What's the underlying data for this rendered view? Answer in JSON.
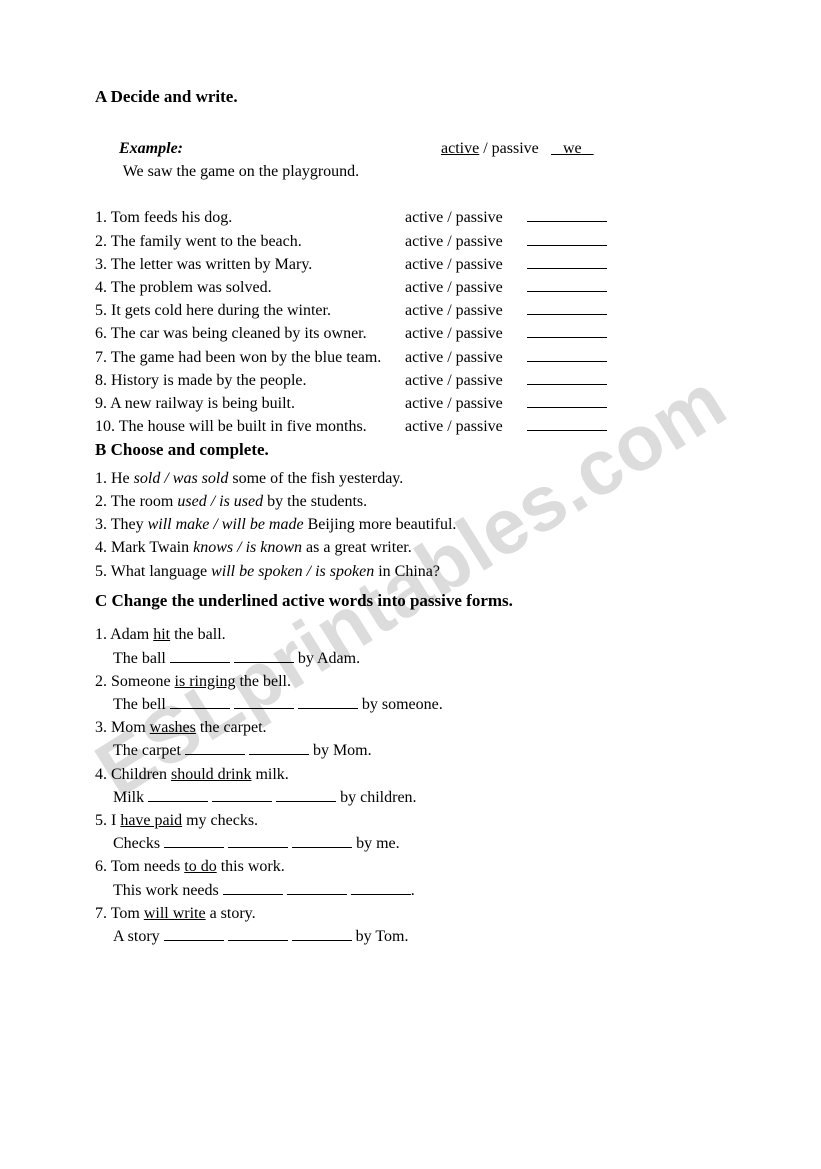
{
  "watermark_text": "ESLprintables.com",
  "sectionA": {
    "heading": "A Decide and write.",
    "example": {
      "label": "Example:",
      "sentence": "We saw the game on the playground.",
      "choice_active": "active",
      "choice_sep": " / ",
      "choice_passive": "passive",
      "answer": "we"
    },
    "choice_text": "active / passive",
    "items": [
      {
        "num": "1.",
        "text": "Tom feeds his dog."
      },
      {
        "num": "2.",
        "text": "The family went to the beach."
      },
      {
        "num": "3.",
        "text": "The letter was written by Mary."
      },
      {
        "num": "4.",
        "text": "The problem was solved."
      },
      {
        "num": "5.",
        "text": "It gets cold here during the winter."
      },
      {
        "num": "6.",
        "text": "The car was being cleaned by its owner."
      },
      {
        "num": "7.",
        "text": "The game had been won by the blue team."
      },
      {
        "num": "8.",
        "text": "History is made by the people."
      },
      {
        "num": "9.",
        "text": "A new railway is being built."
      },
      {
        "num": "10.",
        "text": "The house will be built in five months."
      }
    ]
  },
  "sectionB": {
    "heading": "B Choose and complete.",
    "items": [
      {
        "num": "1.",
        "pre": "He ",
        "opt": "sold / was sold",
        "post": " some of the fish yesterday."
      },
      {
        "num": "2.",
        "pre": "The room ",
        "opt": "used / is used",
        "post": " by the students."
      },
      {
        "num": "3.",
        "pre": "They ",
        "opt": "will make / will be made",
        "post": " Beijing more beautiful."
      },
      {
        "num": "4.",
        "pre": "Mark Twain ",
        "opt": "knows / is known",
        "post": " as a great writer."
      },
      {
        "num": "5.",
        "pre": "What language ",
        "opt": "will be spoken / is spoken",
        "post": " in China?"
      }
    ]
  },
  "sectionC": {
    "heading": "C Change the underlined active words into passive forms.",
    "items": [
      {
        "num": "1.",
        "pre": "Adam ",
        "u": "hit",
        "post": " the ball.",
        "sub_pre": "The ball ",
        "blanks": 2,
        "sub_post": " by Adam."
      },
      {
        "num": "2.",
        "pre": "Someone ",
        "u": "is ringing",
        "post": " the bell.",
        "sub_pre": "The bell ",
        "blanks": 3,
        "sub_post": " by someone."
      },
      {
        "num": "3.",
        "pre": "Mom ",
        "u": "washes",
        "post": " the carpet.",
        "sub_pre": "The carpet ",
        "blanks": 2,
        "sub_post": " by Mom."
      },
      {
        "num": "4.",
        "pre": "Children ",
        "u": "should drink",
        "post": " milk.",
        "sub_pre": "Milk ",
        "blanks": 3,
        "sub_post": " by children."
      },
      {
        "num": "5.",
        "pre": "I ",
        "u": "have paid",
        "post": " my checks.",
        "sub_pre": "Checks ",
        "blanks": 3,
        "sub_post": " by me."
      },
      {
        "num": "6.",
        "pre": "Tom needs ",
        "u": "to do",
        "post": " this work.",
        "sub_pre": "This work needs ",
        "blanks": 3,
        "sub_post": "."
      },
      {
        "num": "7.",
        "pre": "Tom ",
        "u": "will write",
        "post": " a story.",
        "sub_pre": "A story ",
        "blanks": 3,
        "sub_post": " by Tom."
      }
    ]
  }
}
